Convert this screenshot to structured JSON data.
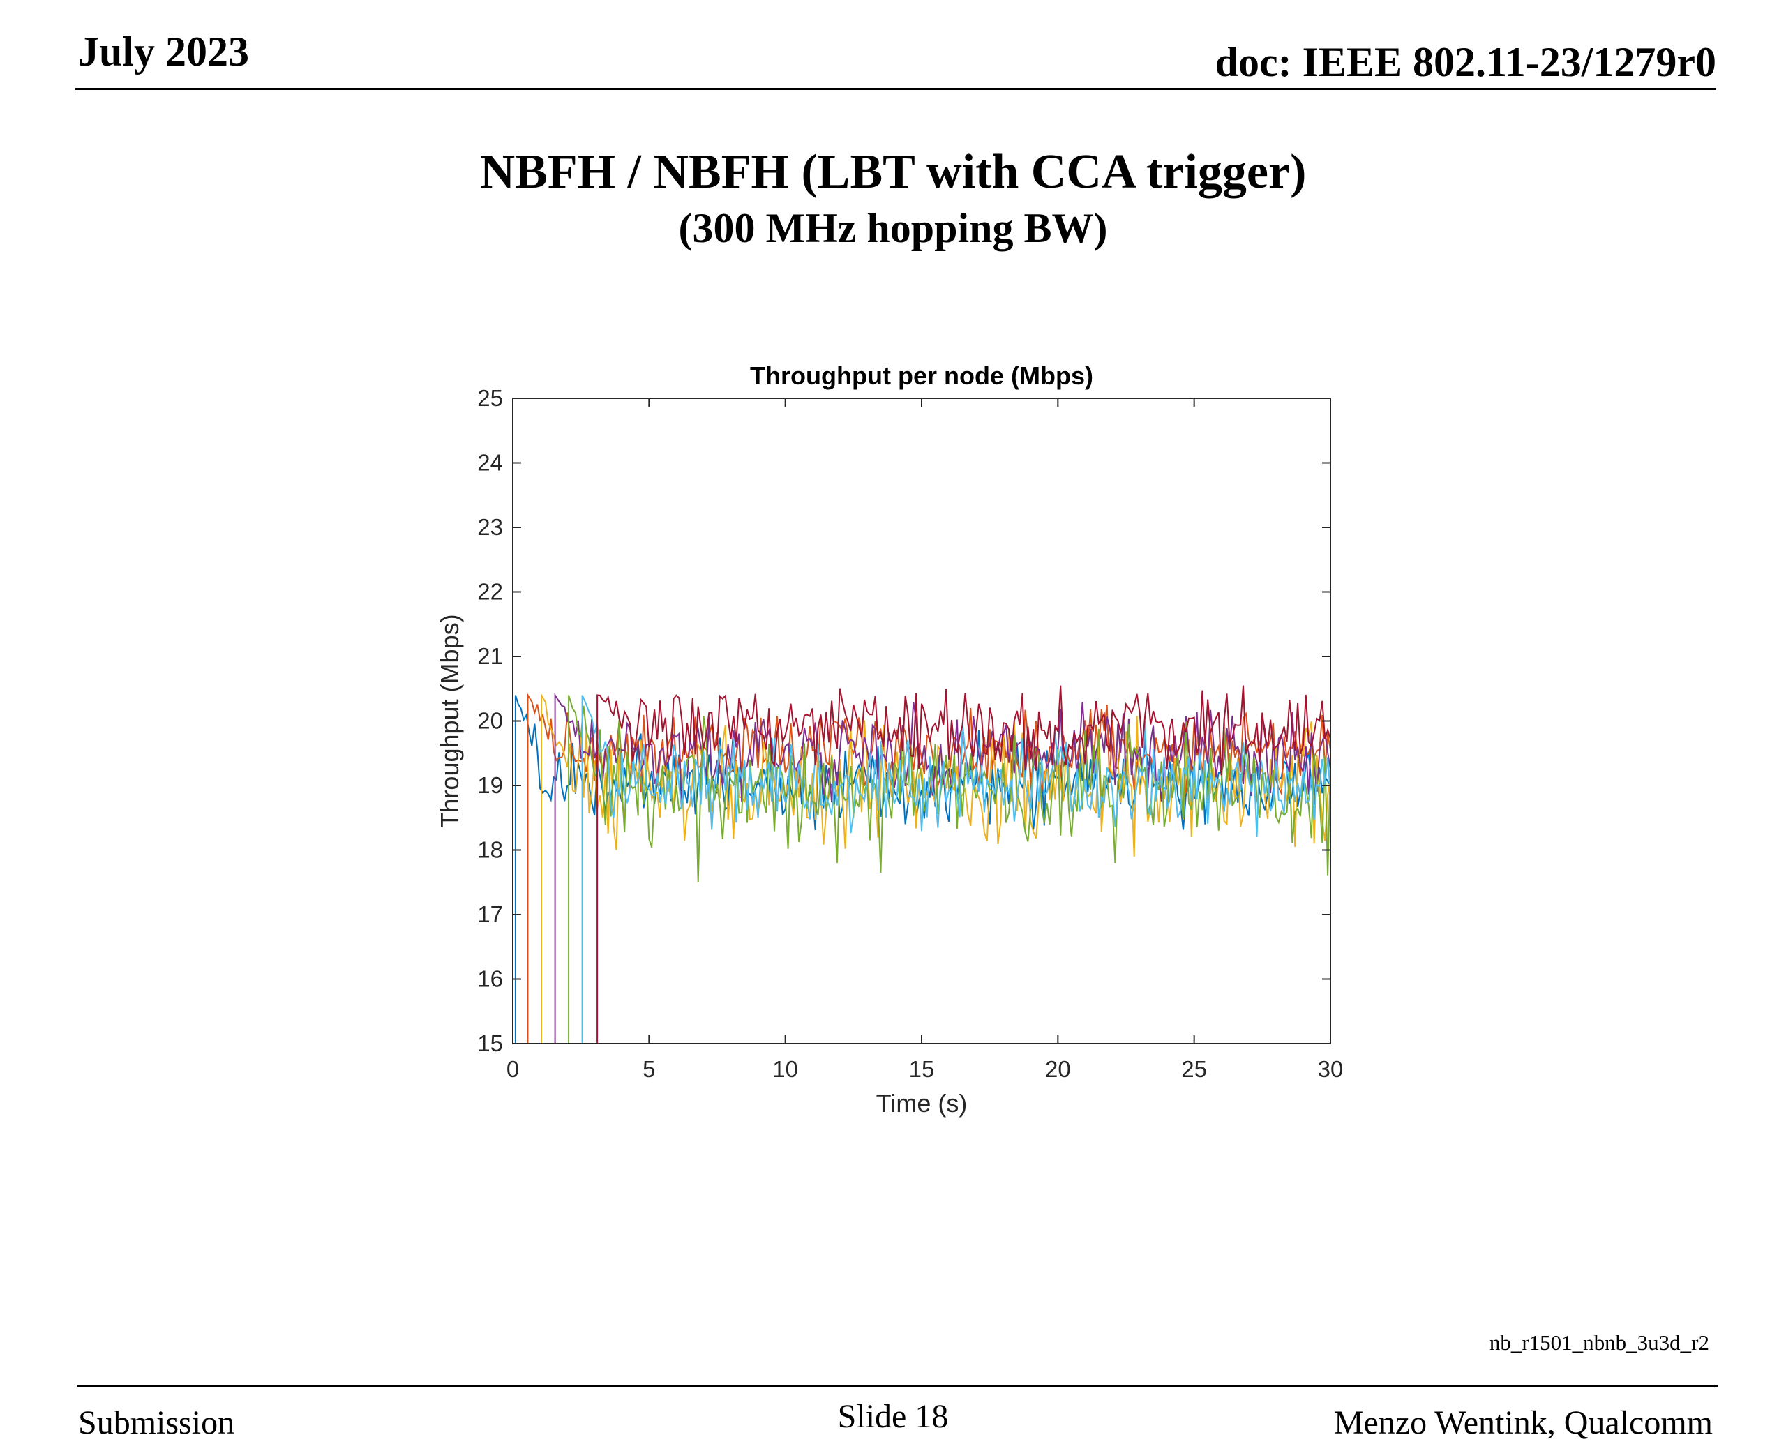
{
  "header": {
    "date": "July 2023",
    "doc": "doc: IEEE 802.11-23/1279r0"
  },
  "slide": {
    "title": "NBFH / NBFH (LBT with CCA trigger)",
    "subtitle": "(300 MHz hopping BW)"
  },
  "file_tag": "nb_r1501_nbnb_3u3d_r2",
  "footer": {
    "left": "Submission",
    "center": "Slide 18",
    "right": "Menzo Wentink, Qualcomm"
  },
  "chart_data": {
    "type": "line",
    "title": "Throughput per node (Mbps)",
    "xlabel": "Time (s)",
    "ylabel": "Throughput (Mbps)",
    "xlim": [
      0,
      30
    ],
    "ylim": [
      15,
      25
    ],
    "xticks": [
      0,
      5,
      10,
      15,
      20,
      25,
      30
    ],
    "yticks": [
      15,
      16,
      17,
      18,
      19,
      20,
      21,
      22,
      23,
      24,
      25
    ],
    "grid": false,
    "dt": 0.1,
    "series": [
      {
        "color": "#0072BD",
        "start": 0.1,
        "start_level": 20.4,
        "mean": 19.05,
        "amplitude": 0.32,
        "dips": [
          [
            12.0,
            18.5
          ],
          [
            17.5,
            18.4
          ]
        ]
      },
      {
        "color": "#D95319",
        "start": 0.55,
        "start_level": 20.4,
        "mean": 19.55,
        "amplitude": 0.28,
        "dips": []
      },
      {
        "color": "#EDB120",
        "start": 1.05,
        "start_level": 20.4,
        "mean": 19.0,
        "amplitude": 0.42,
        "dips": [
          [
            3.8,
            18.0
          ],
          [
            29.4,
            18.1
          ]
        ]
      },
      {
        "color": "#7E2F8E",
        "start": 1.55,
        "start_level": 20.4,
        "mean": 19.5,
        "amplitude": 0.3,
        "dips": []
      },
      {
        "color": "#77AC30",
        "start": 2.05,
        "start_level": 20.4,
        "mean": 18.95,
        "amplitude": 0.42,
        "dips": [
          [
            6.8,
            17.5
          ],
          [
            11.9,
            17.8
          ],
          [
            13.5,
            17.65
          ],
          [
            22.1,
            17.8
          ],
          [
            29.9,
            17.6
          ]
        ]
      },
      {
        "color": "#4DBEEE",
        "start": 2.55,
        "start_level": 20.4,
        "mean": 19.0,
        "amplitude": 0.36,
        "dips": []
      },
      {
        "color": "#A2142F",
        "start": 3.1,
        "start_level": 20.4,
        "mean": 19.85,
        "amplitude": 0.3,
        "dips": []
      }
    ]
  }
}
